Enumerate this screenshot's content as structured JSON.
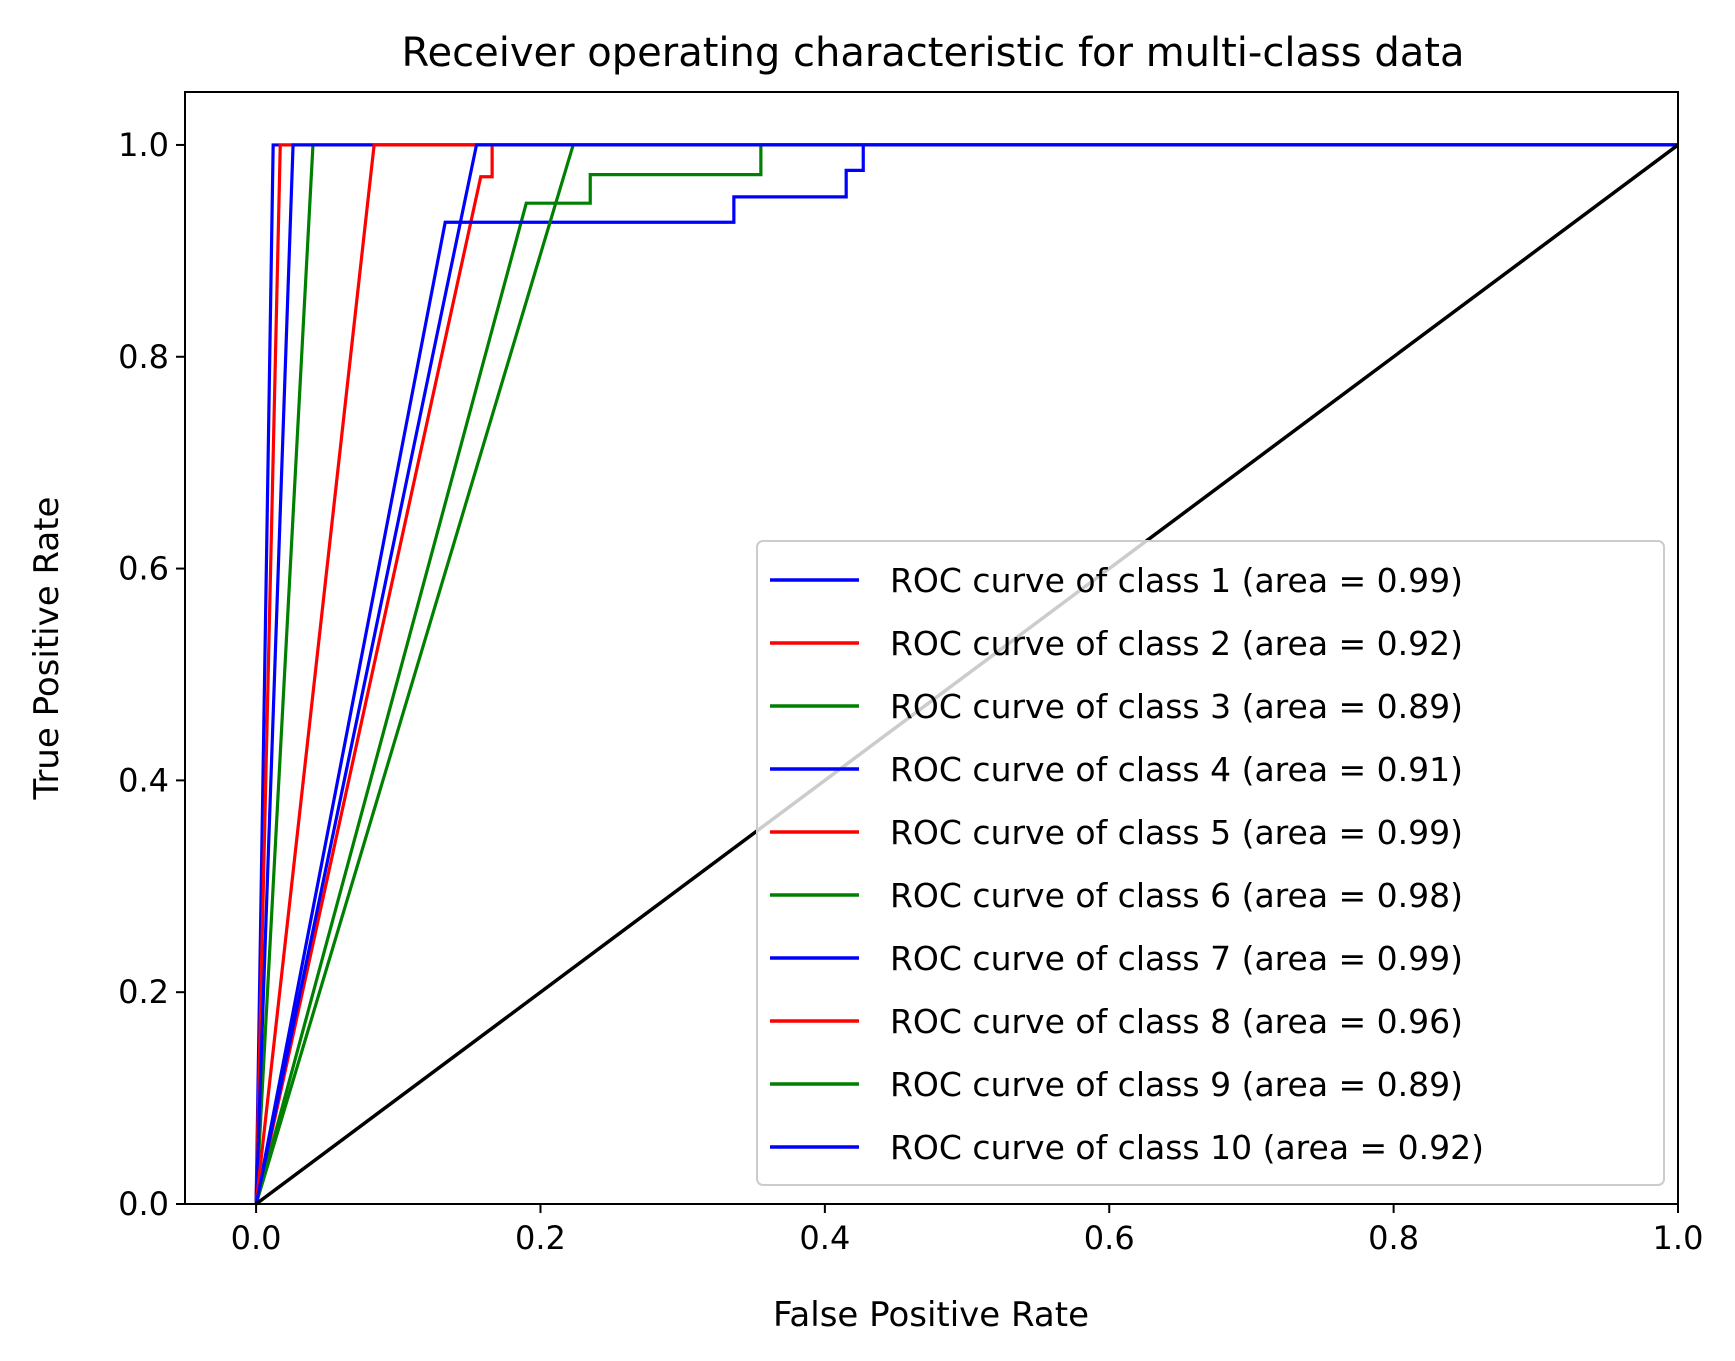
{
  "chart_data": {
    "type": "line",
    "title": "Receiver operating characteristic for multi-class data",
    "xlabel": "False Positive Rate",
    "ylabel": "True Positive Rate",
    "xlim": [
      -0.05,
      1.0
    ],
    "ylim": [
      0.0,
      1.05
    ],
    "xticks": [
      "0.0",
      "0.2",
      "0.4",
      "0.6",
      "0.8",
      "1.0"
    ],
    "yticks": [
      "0.0",
      "0.2",
      "0.4",
      "0.6",
      "0.8",
      "1.0"
    ],
    "grid": false,
    "legend_position": "lower-right",
    "colors": {
      "blue": "#0000ff",
      "red": "#ff0000",
      "green": "#008000",
      "diagonal": "#000000"
    },
    "series": [
      {
        "name": "ROC curve of class 1 (area = 0.99)",
        "color": "#0000ff",
        "x": [
          0.0,
          0.012,
          1.0
        ],
        "y": [
          0.0,
          1.0,
          1.0
        ]
      },
      {
        "name": "ROC curve of class 2 (area = 0.92)",
        "color": "#ff0000",
        "x": [
          0.0,
          0.158,
          0.16,
          0.166,
          0.166,
          1.0
        ],
        "y": [
          0.0,
          0.97,
          0.97,
          0.97,
          1.0,
          1.0
        ]
      },
      {
        "name": "ROC curve of class 3 (area = 0.89)",
        "color": "#008000",
        "x": [
          0.0,
          0.19,
          0.235,
          0.235,
          0.355,
          0.355,
          1.0
        ],
        "y": [
          0.0,
          0.945,
          0.945,
          0.972,
          0.972,
          1.0,
          1.0
        ]
      },
      {
        "name": "ROC curve of class 4 (area = 0.91)",
        "color": "#0000ff",
        "x": [
          0.0,
          0.133,
          0.336,
          0.336,
          0.415,
          0.415,
          0.427,
          0.427,
          1.0
        ],
        "y": [
          0.0,
          0.927,
          0.927,
          0.951,
          0.951,
          0.976,
          0.976,
          1.0,
          1.0
        ]
      },
      {
        "name": "ROC curve of class 5 (area = 0.99)",
        "color": "#ff0000",
        "x": [
          0.0,
          0.017,
          1.0
        ],
        "y": [
          0.0,
          1.0,
          1.0
        ]
      },
      {
        "name": "ROC curve of class 6 (area = 0.98)",
        "color": "#008000",
        "x": [
          0.0,
          0.04,
          1.0
        ],
        "y": [
          0.0,
          1.0,
          1.0
        ]
      },
      {
        "name": "ROC curve of class 7 (area = 0.99)",
        "color": "#0000ff",
        "x": [
          0.0,
          0.026,
          1.0
        ],
        "y": [
          0.0,
          1.0,
          1.0
        ]
      },
      {
        "name": "ROC curve of class 8 (area = 0.96)",
        "color": "#ff0000",
        "x": [
          0.0,
          0.083,
          1.0
        ],
        "y": [
          0.0,
          1.0,
          1.0
        ]
      },
      {
        "name": "ROC curve of class 9 (area = 0.89)",
        "color": "#008000",
        "x": [
          0.0,
          0.223,
          1.0
        ],
        "y": [
          0.0,
          1.0,
          1.0
        ]
      },
      {
        "name": "ROC curve of class 10 (area = 0.92)",
        "color": "#0000ff",
        "x": [
          0.0,
          0.155,
          1.0
        ],
        "y": [
          0.0,
          1.0,
          1.0
        ]
      }
    ],
    "reference_line": {
      "color": "#000000",
      "x": [
        0.0,
        1.0
      ],
      "y": [
        0.0,
        1.0
      ]
    }
  }
}
